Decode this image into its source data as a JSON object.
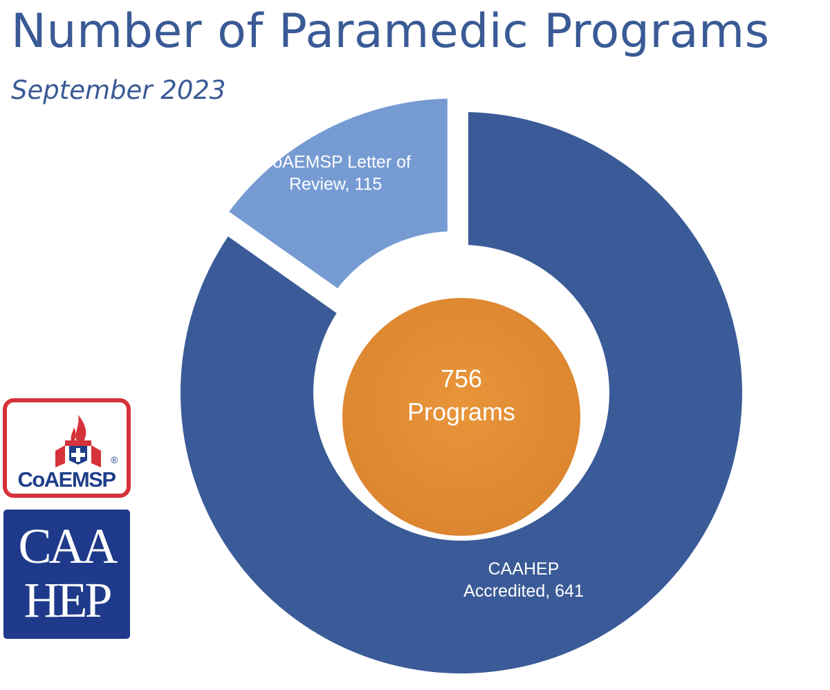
{
  "title": "Number of Paramedic Programs",
  "subtitle": "September 2023",
  "center": {
    "line1": "756",
    "line2": "Programs",
    "color": "#e38f36"
  },
  "logos": {
    "coaemsp": {
      "text": "CoAEMSP",
      "mark": "®",
      "border_color": "#d6323a",
      "text_color": "#1f3f8a"
    },
    "caahep": {
      "line1": "CAA",
      "line2": "HEP",
      "bg_color": "#1f3a8a"
    }
  },
  "colors": {
    "title": "#3a5a96"
  },
  "chart_data": {
    "type": "pie",
    "variant": "donut",
    "total": 756,
    "slices": [
      {
        "label": "CoAEMSP Letter of Review",
        "value": 115,
        "color": "#769bd3",
        "exploded": true,
        "label_lines": [
          "CoAEMSP Letter of",
          "Review, 115"
        ]
      },
      {
        "label": "CAAHEP Accredited",
        "value": 641,
        "color": "#3a5b97",
        "exploded": false,
        "label_lines": [
          "CAAHEP",
          "Accredited, 641"
        ]
      }
    ]
  }
}
